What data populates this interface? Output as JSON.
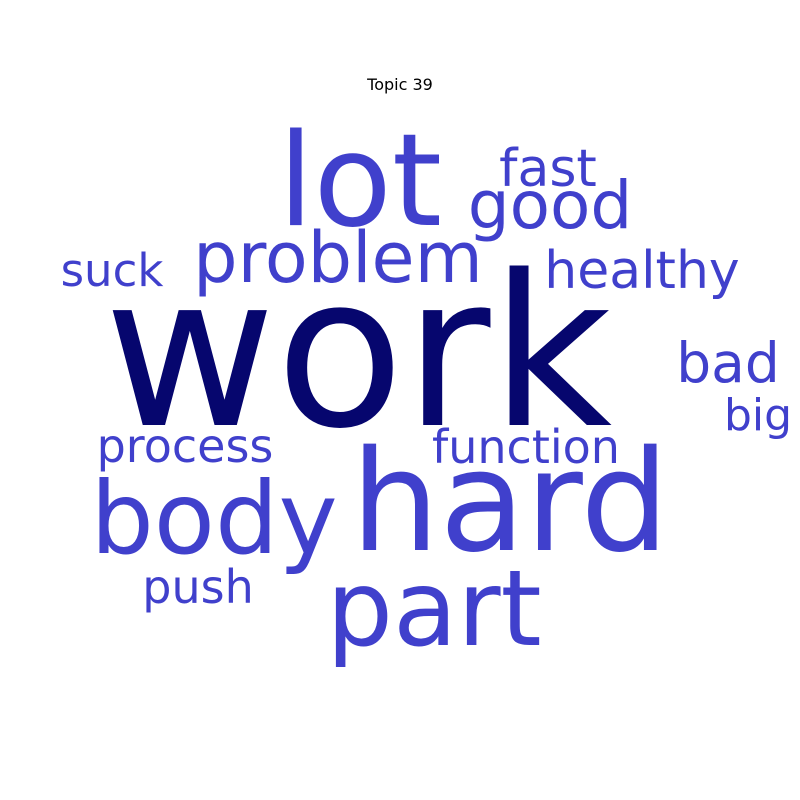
{
  "chart_data": {
    "type": "wordcloud",
    "title": "Topic 39",
    "colors": {
      "primary": "#06066e",
      "secondary": "#4040cc"
    },
    "words": [
      {
        "text": "work",
        "weight": 1.0
      },
      {
        "text": "hard",
        "weight": 0.68
      },
      {
        "text": "lot",
        "weight": 0.62
      },
      {
        "text": "part",
        "weight": 0.56
      },
      {
        "text": "body",
        "weight": 0.52
      },
      {
        "text": "problem",
        "weight": 0.4
      },
      {
        "text": "good",
        "weight": 0.38
      },
      {
        "text": "healthy",
        "weight": 0.3
      },
      {
        "text": "bad",
        "weight": 0.3
      },
      {
        "text": "fast",
        "weight": 0.28
      },
      {
        "text": "function",
        "weight": 0.27
      },
      {
        "text": "process",
        "weight": 0.27
      },
      {
        "text": "push",
        "weight": 0.27
      },
      {
        "text": "suck",
        "weight": 0.26
      },
      {
        "text": "big",
        "weight": 0.25
      }
    ]
  }
}
